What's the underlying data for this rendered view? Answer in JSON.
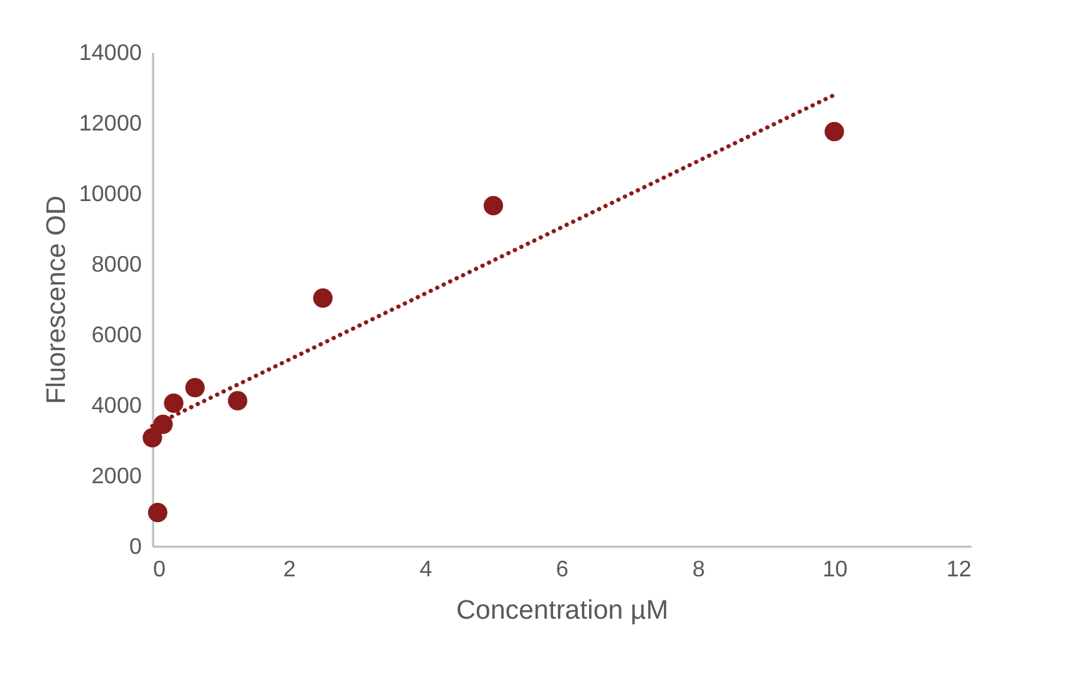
{
  "chart_data": {
    "type": "scatter",
    "xlabel": "Concentration µM",
    "ylabel": "Fluorescence OD",
    "xlim": [
      0,
      12
    ],
    "xticks": [
      0,
      2,
      4,
      6,
      8,
      10,
      12
    ],
    "ylim": [
      0,
      14000
    ],
    "yticks": [
      0,
      2000,
      4000,
      6000,
      8000,
      10000,
      12000,
      14000
    ],
    "grid": false,
    "series": [
      {
        "color": "#8b1a1a",
        "marker": "circle",
        "x": [
          0,
          0.078,
          0.156,
          0.3125,
          0.625,
          1.25,
          2.5,
          5,
          10
        ],
        "values": [
          3070,
          950,
          3450,
          4050,
          4490,
          4120,
          7030,
          9650,
          11750
        ]
      },
      {
        "type": "line",
        "color": "#8b1a1a",
        "line_style": "dotted",
        "x": [
          0,
          10
        ],
        "values": [
          3400,
          12790
        ]
      }
    ]
  }
}
